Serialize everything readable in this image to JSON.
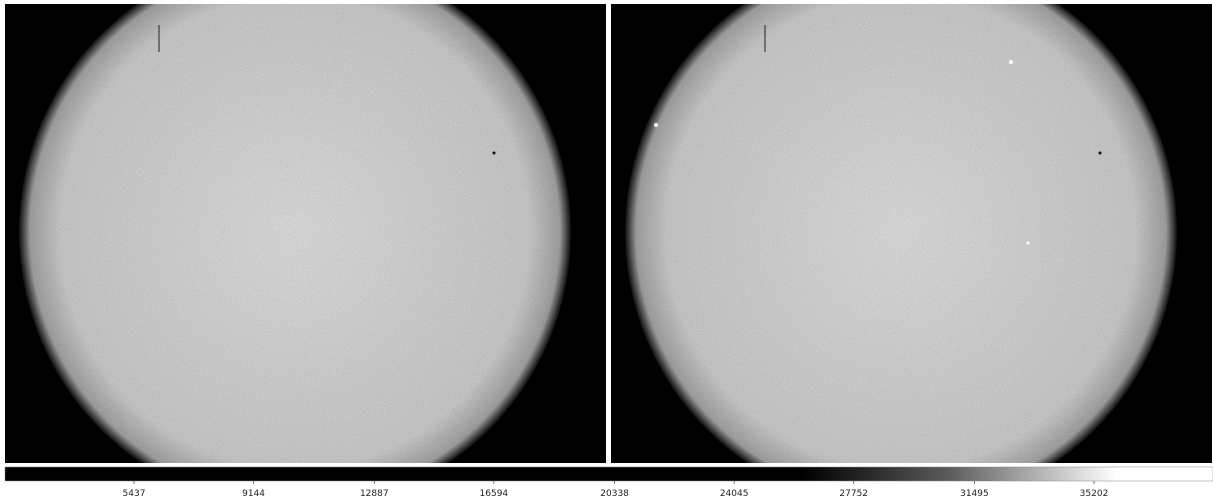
{
  "colorbar": {
    "ticks": [
      5437,
      9144,
      12887,
      16594,
      20338,
      24045,
      27752,
      31495,
      35202
    ]
  }
}
